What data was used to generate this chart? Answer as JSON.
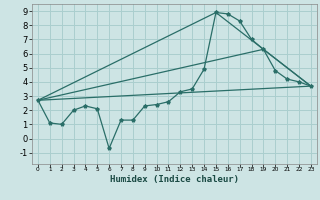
{
  "xlabel": "Humidex (Indice chaleur)",
  "bg_color": "#cde4e4",
  "grid_color": "#aacece",
  "line_color": "#2a6e68",
  "xlim": [
    -0.5,
    23.5
  ],
  "ylim": [
    -1.8,
    9.5
  ],
  "xticks": [
    0,
    1,
    2,
    3,
    4,
    5,
    6,
    7,
    8,
    9,
    10,
    11,
    12,
    13,
    14,
    15,
    16,
    17,
    18,
    19,
    20,
    21,
    22,
    23
  ],
  "yticks": [
    -1,
    0,
    1,
    2,
    3,
    4,
    5,
    6,
    7,
    8,
    9
  ],
  "line1_x": [
    0,
    1,
    2,
    3,
    4,
    5,
    6,
    7,
    8,
    9,
    10,
    11,
    12,
    13,
    14,
    15,
    16,
    17,
    18,
    19,
    20,
    21,
    22,
    23
  ],
  "line1_y": [
    2.7,
    1.1,
    1.0,
    2.0,
    2.3,
    2.1,
    -0.7,
    1.3,
    1.3,
    2.3,
    2.4,
    2.6,
    3.3,
    3.5,
    4.9,
    8.9,
    8.8,
    8.3,
    7.0,
    6.3,
    4.8,
    4.2,
    4.0,
    3.7
  ],
  "line2_x": [
    0,
    23
  ],
  "line2_y": [
    2.7,
    3.7
  ],
  "line3_x": [
    0,
    15,
    23
  ],
  "line3_y": [
    2.7,
    8.9,
    3.7
  ],
  "line4_x": [
    0,
    19,
    23
  ],
  "line4_y": [
    2.7,
    6.3,
    3.7
  ]
}
